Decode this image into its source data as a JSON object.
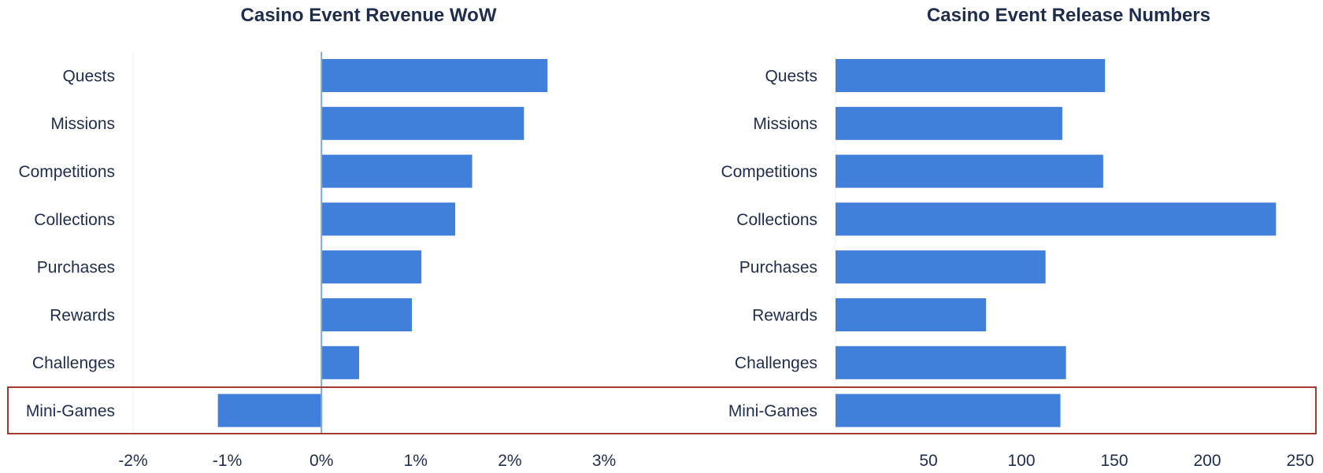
{
  "colors": {
    "bar": "#4180da",
    "text": "#1f2d4d",
    "zero_line": "#7fa8d6",
    "highlight_border": "#a33a32",
    "divider": "#f0f0f0"
  },
  "highlight": {
    "category": "Mini-Games"
  },
  "chart_data": [
    {
      "type": "bar",
      "orientation": "horizontal",
      "title": "Casino Event Revenue WoW",
      "categories": [
        "Quests",
        "Missions",
        "Competitions",
        "Collections",
        "Purchases",
        "Rewards",
        "Challenges",
        "Mini-Games"
      ],
      "values": [
        2.4,
        2.15,
        1.6,
        1.42,
        1.06,
        0.96,
        0.4,
        -1.1
      ],
      "unit": "%",
      "xlim": [
        -2,
        3
      ],
      "xticks": [
        -2,
        -1,
        0,
        1,
        2,
        3
      ],
      "xtick_labels": [
        "-2%",
        "-1%",
        "0%",
        "1%",
        "2%",
        "3%"
      ],
      "xlabel": "",
      "ylabel": ""
    },
    {
      "type": "bar",
      "orientation": "horizontal",
      "title": "Casino Event Release Numbers",
      "categories": [
        "Quests",
        "Missions",
        "Competitions",
        "Collections",
        "Purchases",
        "Rewards",
        "Challenges",
        "Mini-Games"
      ],
      "values": [
        145,
        122,
        144,
        237,
        113,
        81,
        124,
        121
      ],
      "xlim": [
        0,
        250
      ],
      "xticks": [
        50,
        100,
        150,
        200,
        250
      ],
      "xtick_labels": [
        "50",
        "100",
        "150",
        "200",
        "250"
      ],
      "xlabel": "",
      "ylabel": ""
    }
  ]
}
